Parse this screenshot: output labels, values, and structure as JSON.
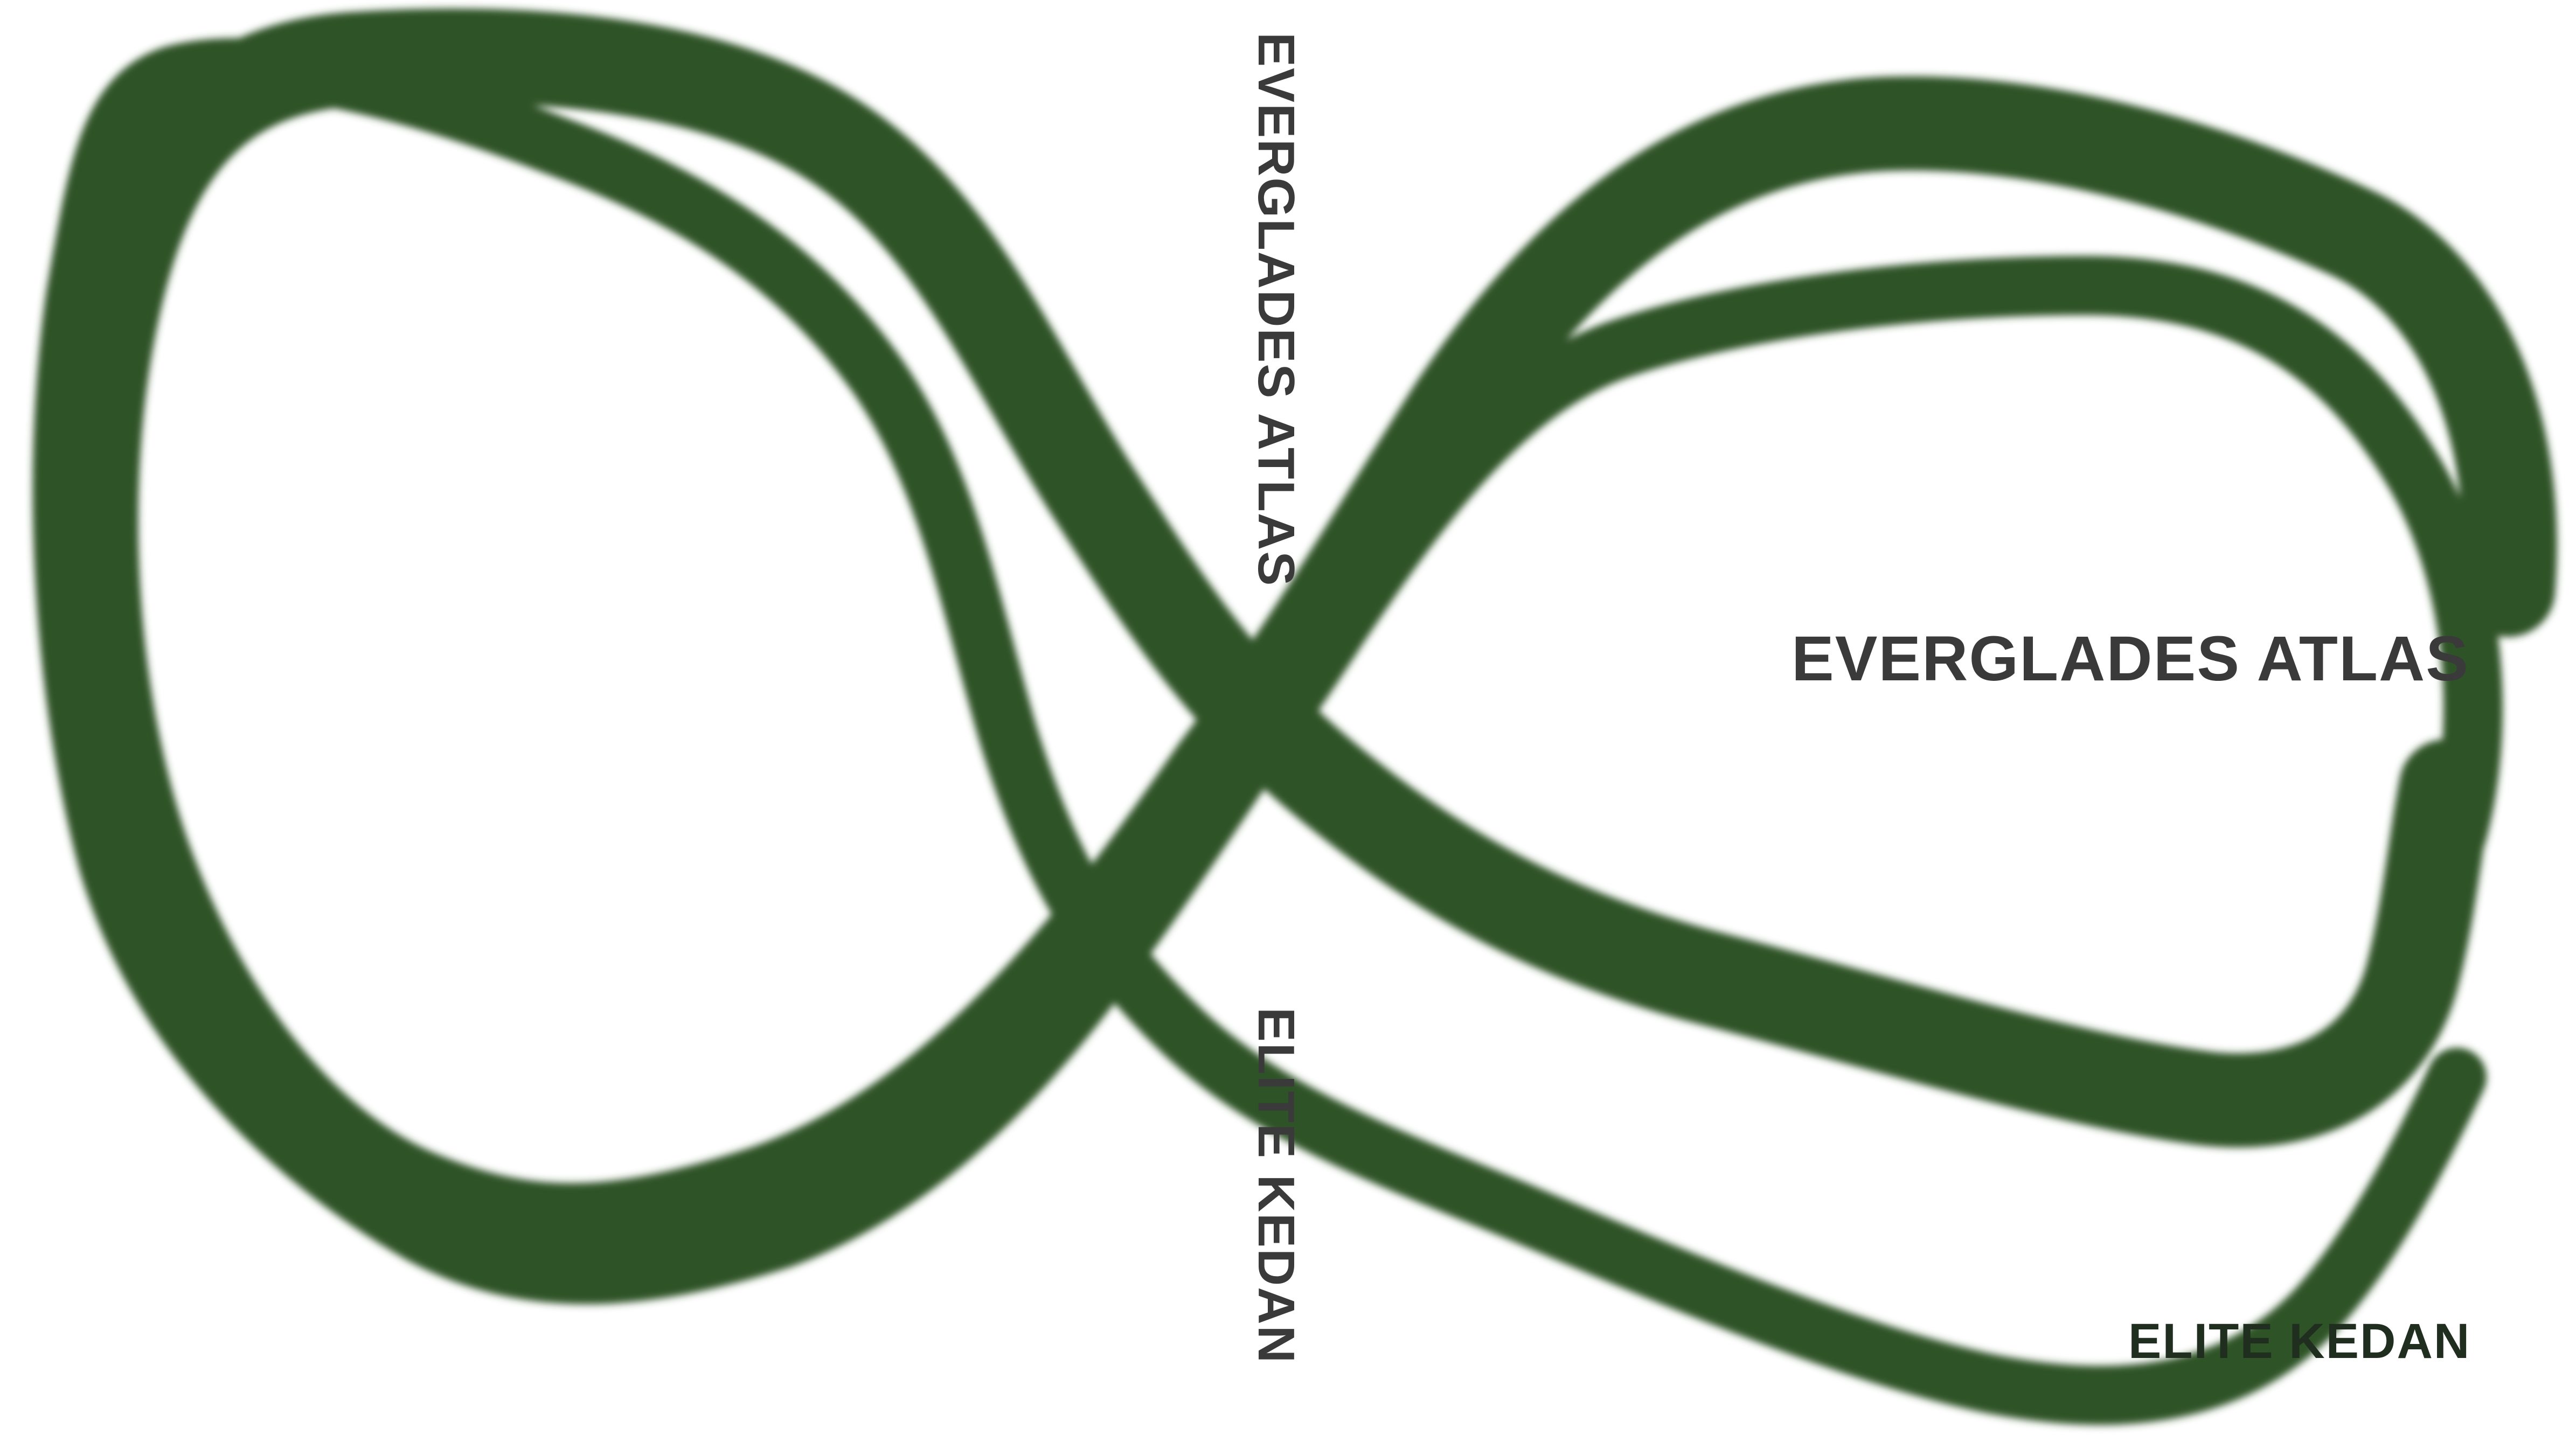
{
  "cover": {
    "spine": {
      "title": "EVERGLADES ATLAS",
      "author": "ELITE KEDAN"
    },
    "front": {
      "title": "EVERGLADES ATLAS",
      "author": "ELITE KEDAN"
    },
    "colors": {
      "background": "#ffffff",
      "stroke": "#2f5225",
      "text": "#3a3a3a",
      "author_front": "#1f2e1f"
    }
  }
}
